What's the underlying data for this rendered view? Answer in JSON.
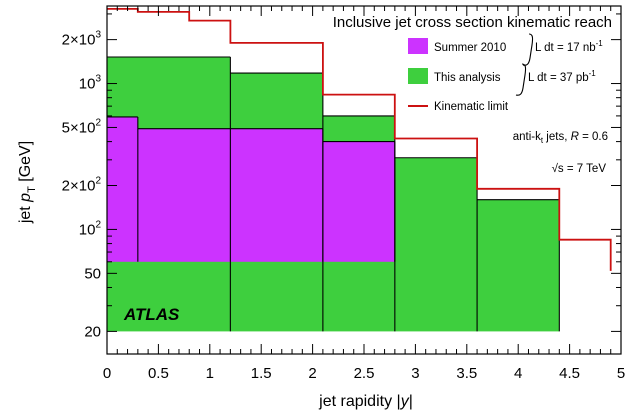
{
  "chart_data": {
    "type": "step-area",
    "title": "Inclusive jet cross section kinematic reach",
    "xlabel": {
      "prefix": "jet rapidity |",
      "var": "y",
      "suffix": "|"
    },
    "ylabel": {
      "prefix": "jet ",
      "var": "p",
      "sub": "T",
      "suffix": " [GeV]"
    },
    "xlim": [
      0,
      5
    ],
    "ylim": [
      14,
      3400
    ],
    "yscale": "log",
    "x_ticks": [
      "0",
      "0.5",
      "1",
      "1.5",
      "2",
      "2.5",
      "3",
      "3.5",
      "4",
      "4.5",
      "5"
    ],
    "y_ticks": [
      {
        "value": 20,
        "mant": "20",
        "exp": ""
      },
      {
        "value": 50,
        "mant": "50",
        "exp": ""
      },
      {
        "value": 100,
        "mant": "10",
        "exp": "2"
      },
      {
        "value": 200,
        "mant": "2×10",
        "exp": "2"
      },
      {
        "value": 500,
        "mant": "5×10",
        "exp": "2"
      },
      {
        "value": 1000,
        "mant": "10",
        "exp": "3"
      },
      {
        "value": 2000,
        "mant": "2×10",
        "exp": "3"
      }
    ],
    "series": [
      {
        "name": "This analysis",
        "kind": "band",
        "color": "#3ecf3e",
        "bins": [
          {
            "x0": 0.0,
            "x1": 1.2,
            "low": 20,
            "high": 1520
          },
          {
            "x0": 1.2,
            "x1": 2.1,
            "low": 20,
            "high": 1180
          },
          {
            "x0": 2.1,
            "x1": 2.8,
            "low": 20,
            "high": 600
          },
          {
            "x0": 2.8,
            "x1": 3.6,
            "low": 20,
            "high": 310
          },
          {
            "x0": 3.6,
            "x1": 4.4,
            "low": 20,
            "high": 160
          }
        ]
      },
      {
        "name": "Summer 2010",
        "kind": "band",
        "color": "#cc33ff",
        "bins": [
          {
            "x0": 0.0,
            "x1": 0.3,
            "low": 60,
            "high": 590
          },
          {
            "x0": 0.3,
            "x1": 2.1,
            "low": 60,
            "high": 490
          },
          {
            "x0": 2.1,
            "x1": 2.8,
            "low": 60,
            "high": 400
          }
        ]
      },
      {
        "name": "Kinematic limit",
        "kind": "line",
        "color": "#cc1111",
        "x": [
          0.0,
          0.3,
          0.3,
          0.8,
          0.8,
          1.2,
          1.2,
          2.1,
          2.1,
          2.8,
          2.8,
          3.6,
          3.6,
          4.4,
          4.4,
          4.9,
          4.9
        ],
        "y": [
          3250,
          3250,
          3100,
          3100,
          2700,
          2700,
          1900,
          1900,
          840,
          840,
          420,
          420,
          190,
          190,
          85,
          85,
          52
        ]
      }
    ],
    "legend": [
      {
        "label": "Summer 2010",
        "swatch": "box",
        "color": "#cc33ff",
        "lumi": "L dt = 17 nb",
        "lumi_exp": "-1"
      },
      {
        "label": "This analysis",
        "swatch": "box",
        "color": "#3ecf3e",
        "lumi": "L dt = 37 pb",
        "lumi_exp": "-1"
      },
      {
        "label": "Kinematic limit",
        "swatch": "line",
        "color": "#cc1111"
      }
    ],
    "legend_placement": "top-right",
    "annotations": {
      "algo_prefix": "anti-k",
      "algo_sub": "t",
      "algo_mid": " jets, ",
      "algo_var": "R",
      "algo_suffix": " = 0.6",
      "energy_sym": "√s",
      "energy_suffix": " = 7 TeV",
      "experiment": "ATLAS"
    }
  }
}
